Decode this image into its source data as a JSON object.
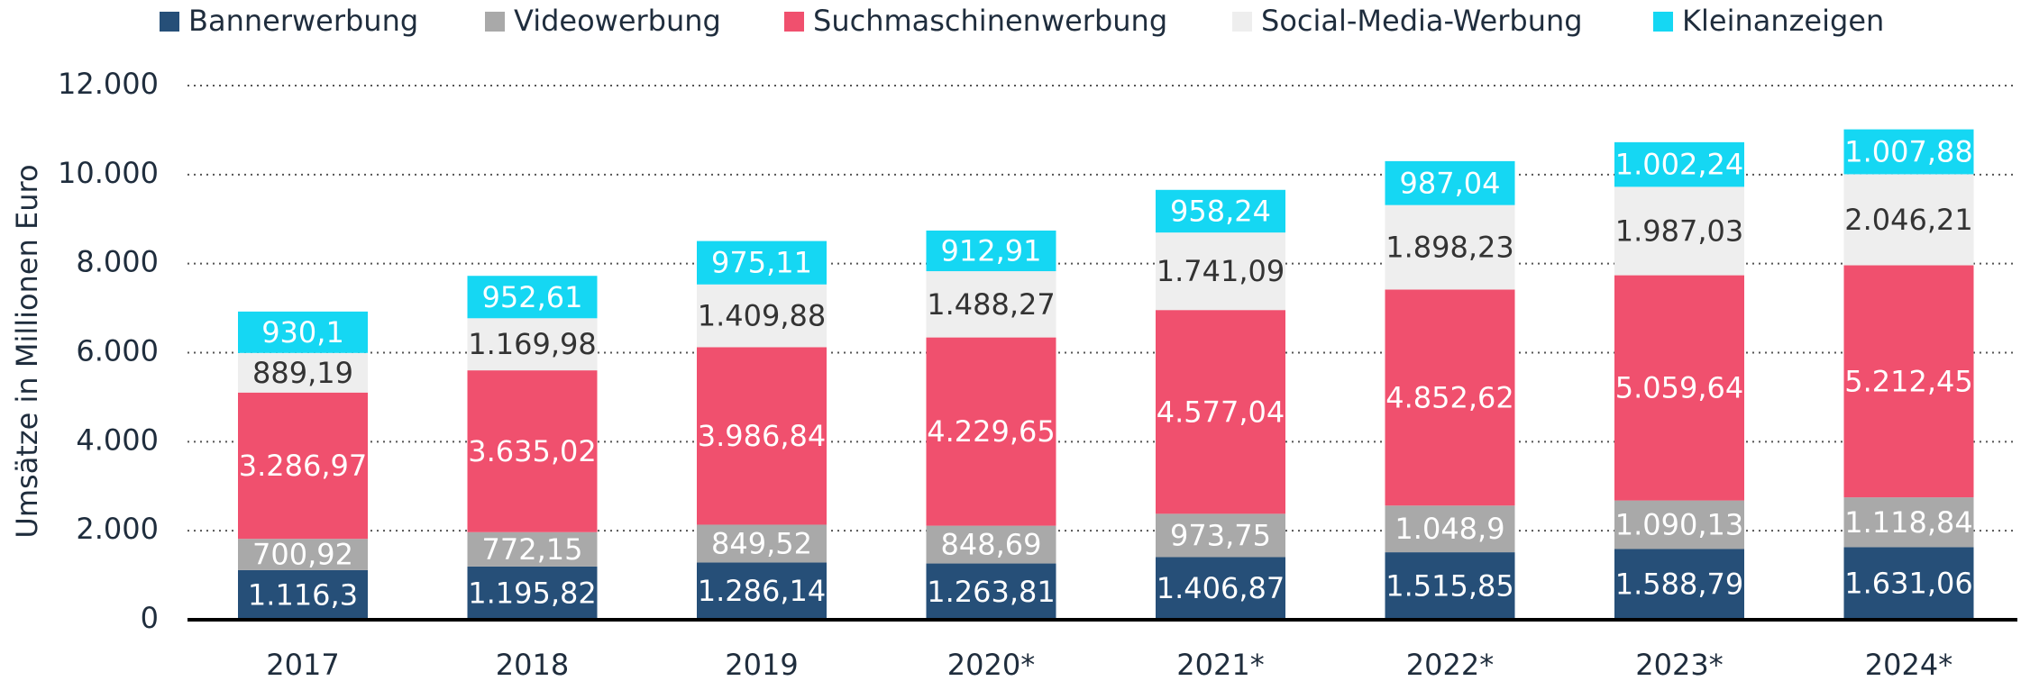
{
  "chart_data": {
    "type": "stacked_bar",
    "y_label": "Umsätze in Millionen Euro",
    "categories": [
      "2017",
      "2018",
      "2019",
      "2020*",
      "2021*",
      "2022*",
      "2023*",
      "2024*"
    ],
    "series": [
      {
        "name": "Bannerwerbung",
        "color": "#264f78",
        "values": [
          1116.3,
          1195.82,
          1286.14,
          1263.81,
          1406.87,
          1515.85,
          1588.79,
          1631.06
        ],
        "value_labels": [
          "1.116,3",
          "1.195,82",
          "1.286,14",
          "1.263,81",
          "1.406,87",
          "1.515,85",
          "1.588,79",
          "1.631,06"
        ]
      },
      {
        "name": "Videowerbung",
        "color": "#a9a9a9",
        "values": [
          700.92,
          772.15,
          849.52,
          848.69,
          973.75,
          1048.9,
          1090.13,
          1118.84
        ],
        "value_labels": [
          "700,92",
          "772,15",
          "849,52",
          "848,69",
          "973,75",
          "1.048,9",
          "1.090,13",
          "1.118,84"
        ]
      },
      {
        "name": "Suchmaschinenwerbung",
        "color": "#f0506e",
        "values": [
          3286.97,
          3635.02,
          3986.84,
          4229.65,
          4577.04,
          4852.62,
          5059.64,
          5212.45
        ],
        "value_labels": [
          "3.286,97",
          "3.635,02",
          "3.986,84",
          "4.229,65",
          "4.577,04",
          "4.852,62",
          "5.059,64",
          "5.212,45"
        ]
      },
      {
        "name": "Social-Media-Werbung",
        "color": "#eeeeee",
        "values": [
          889.19,
          1169.98,
          1409.88,
          1488.27,
          1741.09,
          1898.23,
          1987.03,
          2046.21
        ],
        "value_labels": [
          "889,19",
          "1.169,98",
          "1.409,88",
          "1.488,27",
          "1.741,09",
          "1.898,23",
          "1.987,03",
          "2.046,21"
        ]
      },
      {
        "name": "Kleinanzeigen",
        "color": "#15d7f3",
        "values": [
          930.1,
          952.61,
          975.11,
          912.91,
          958.24,
          987.04,
          1002.24,
          1007.88
        ],
        "value_labels": [
          "930,1",
          "952,61",
          "975,11",
          "912,91",
          "958,24",
          "987,04",
          "1.002,24",
          "1.007,88"
        ]
      }
    ],
    "ylim": [
      0,
      12000
    ],
    "yticks": [
      0,
      {
        "value": 2000,
        "label": "2.000"
      },
      {
        "value": 4000,
        "label": "4.000"
      },
      {
        "value": 6000,
        "label": "6.000"
      },
      {
        "value": 8000,
        "label": "8.000"
      },
      {
        "value": 10000,
        "label": "10.000"
      },
      {
        "value": 12000,
        "label": "12.000"
      }
    ],
    "grid": true,
    "legend": "top"
  }
}
